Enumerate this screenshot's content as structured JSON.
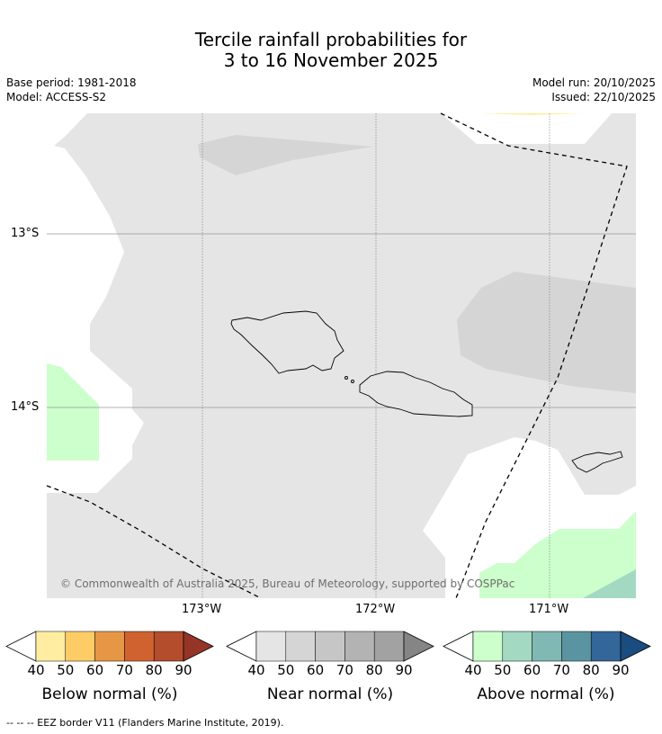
{
  "title_line1": "Tercile rainfall probabilities for",
  "title_line2": "3 to 16 November 2025",
  "meta": {
    "base_period": "Base period: 1981-2018",
    "model": "Model: ACCESS-S2",
    "model_run": "Model run: 20/10/2025",
    "issued": "Issued: 22/10/2025"
  },
  "map": {
    "lat_labels": [
      "13°S",
      "14°S"
    ],
    "lon_labels": [
      "173°W",
      "172°W",
      "171°W"
    ],
    "copyright": "© Commonwealth of Australia 2025, Bureau of Meteorology, supported by COSPPac",
    "colors": {
      "near_normal_40": "#e5e5e5",
      "near_normal_50": "#d5d5d5",
      "above_40": "#ccffcc",
      "above_50": "#a3d9c2",
      "below_40": "#ffeea1"
    }
  },
  "colorbars": [
    {
      "label": "Below normal (%)",
      "ticks": [
        "40",
        "50",
        "60",
        "70",
        "80",
        "90"
      ],
      "colors": [
        "#ffeea1",
        "#fdcc66",
        "#e69745",
        "#cf622f",
        "#b34d2c",
        "#963527"
      ]
    },
    {
      "label": "Near normal (%)",
      "ticks": [
        "40",
        "50",
        "60",
        "70",
        "80",
        "90"
      ],
      "colors": [
        "#e5e5e5",
        "#d5d5d5",
        "#c6c6c6",
        "#b3b3b3",
        "#a2a2a2",
        "#858585"
      ]
    },
    {
      "label": "Above normal (%)",
      "ticks": [
        "40",
        "50",
        "60",
        "70",
        "80",
        "90"
      ],
      "colors": [
        "#ccffcc",
        "#a3d9c2",
        "#80b8b3",
        "#5a94a0",
        "#336699",
        "#1a4c80"
      ]
    }
  ],
  "footer": "--  --  -- EEZ border V11 (Flanders Marine Institute, 2019)."
}
